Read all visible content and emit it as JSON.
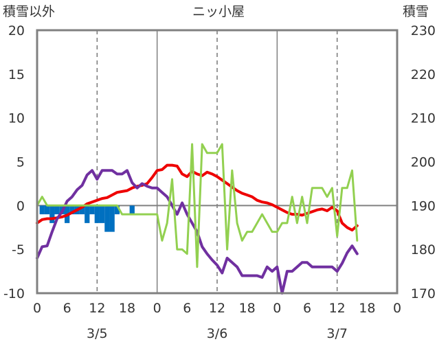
{
  "chart_data": {
    "type": "line",
    "title": "ニッ小屋",
    "left_axis_label": "積雪以外",
    "right_axis_label": "積雪",
    "left_ylim": [
      -10,
      20
    ],
    "right_ylim": [
      170,
      230
    ],
    "left_yticks": [
      "20",
      "15",
      "10",
      "5",
      "0",
      "-5",
      "-10"
    ],
    "right_yticks": [
      "230",
      "220",
      "210",
      "200",
      "190",
      "180",
      "170"
    ],
    "xlim": [
      0,
      72
    ],
    "x_ticks": [
      "0",
      "6",
      "12",
      "18",
      "0",
      "6",
      "12",
      "18",
      "0",
      "6",
      "12",
      "18",
      "0"
    ],
    "day_labels": [
      "3/5",
      "3/6",
      "3/7"
    ],
    "grid": "dashed vertical lines at hours 12, 36, 60; solid lines at day boundaries and at zero",
    "x_unit": "hours from 3/5 00:00",
    "series": [
      {
        "color": "#ee0000",
        "axis": "left",
        "values": [
          [
            0,
            -2
          ],
          [
            1,
            -1.6
          ],
          [
            2,
            -1.5
          ],
          [
            3,
            -1.5
          ],
          [
            4,
            -1.4
          ],
          [
            5,
            -1.3
          ],
          [
            6,
            -1.1
          ],
          [
            7,
            -0.8
          ],
          [
            8,
            -0.5
          ],
          [
            9,
            -0.2
          ],
          [
            10,
            0.2
          ],
          [
            11,
            0.4
          ],
          [
            12,
            0.6
          ],
          [
            13,
            0.8
          ],
          [
            14,
            0.9
          ],
          [
            15,
            1.2
          ],
          [
            16,
            1.5
          ],
          [
            17,
            1.6
          ],
          [
            18,
            1.7
          ],
          [
            19,
            2
          ],
          [
            20,
            2.2
          ],
          [
            21,
            2.3
          ],
          [
            22,
            2.5
          ],
          [
            23,
            3.2
          ],
          [
            24,
            4
          ],
          [
            25,
            4.1
          ],
          [
            26,
            4.6
          ],
          [
            27,
            4.6
          ],
          [
            28,
            4.5
          ],
          [
            29,
            3.6
          ],
          [
            30,
            3.3
          ],
          [
            31,
            3.9
          ],
          [
            32,
            3.6
          ],
          [
            33,
            3.4
          ],
          [
            34,
            3.8
          ],
          [
            35,
            3.6
          ],
          [
            36,
            3.3
          ],
          [
            37,
            2.9
          ],
          [
            38,
            2.5
          ],
          [
            39,
            2.1
          ],
          [
            40,
            1.7
          ],
          [
            41,
            1.4
          ],
          [
            42,
            1.2
          ],
          [
            43,
            1
          ],
          [
            44,
            0.6
          ],
          [
            45,
            0.4
          ],
          [
            46,
            0.3
          ],
          [
            47,
            0.1
          ],
          [
            48,
            -0.2
          ],
          [
            49,
            -0.5
          ],
          [
            50,
            -0.8
          ],
          [
            51,
            -1
          ],
          [
            52,
            -1
          ],
          [
            53,
            -1.1
          ],
          [
            54,
            -0.9
          ],
          [
            55,
            -0.7
          ],
          [
            56,
            -0.5
          ],
          [
            57,
            -0.4
          ],
          [
            58,
            -0.6
          ],
          [
            59,
            -0.2
          ],
          [
            60,
            -0.6
          ],
          [
            61,
            -2
          ],
          [
            62,
            -2.5
          ],
          [
            63,
            -2.8
          ],
          [
            64,
            -2.3
          ]
        ]
      },
      {
        "color": "#7030a0",
        "axis": "left",
        "values": [
          [
            0,
            -6
          ],
          [
            1,
            -4.7
          ],
          [
            2,
            -4.6
          ],
          [
            3,
            -3
          ],
          [
            4,
            -1.5
          ],
          [
            5,
            -0.7
          ],
          [
            6,
            0.5
          ],
          [
            7,
            1
          ],
          [
            8,
            1.8
          ],
          [
            9,
            2.3
          ],
          [
            10,
            3.5
          ],
          [
            11,
            4
          ],
          [
            12,
            3
          ],
          [
            13,
            4
          ],
          [
            14,
            4
          ],
          [
            15,
            4
          ],
          [
            16,
            3.6
          ],
          [
            17,
            3.6
          ],
          [
            18,
            4
          ],
          [
            19,
            2.6
          ],
          [
            20,
            2
          ],
          [
            21,
            2.5
          ],
          [
            22,
            2.2
          ],
          [
            23,
            2
          ],
          [
            24,
            2
          ],
          [
            25,
            1.5
          ],
          [
            26,
            1
          ],
          [
            27,
            0
          ],
          [
            28,
            -1
          ],
          [
            29,
            0.3
          ],
          [
            30,
            -1
          ],
          [
            31,
            -2
          ],
          [
            32,
            -3
          ],
          [
            33,
            -4.7
          ],
          [
            34,
            -5.5
          ],
          [
            35,
            -6.2
          ],
          [
            36,
            -6.8
          ],
          [
            37,
            -7.7
          ],
          [
            38,
            -6
          ],
          [
            39,
            -6.5
          ],
          [
            40,
            -7
          ],
          [
            41,
            -8
          ],
          [
            42,
            -8
          ],
          [
            43,
            -8
          ],
          [
            44,
            -8
          ],
          [
            45,
            -8.2
          ],
          [
            46,
            -7
          ],
          [
            47,
            -7.5
          ],
          [
            48,
            -7
          ],
          [
            49,
            -10
          ],
          [
            50,
            -7.5
          ],
          [
            51,
            -7.5
          ],
          [
            52,
            -7
          ],
          [
            53,
            -6.5
          ],
          [
            54,
            -6.5
          ],
          [
            55,
            -7
          ],
          [
            56,
            -7
          ],
          [
            57,
            -7
          ],
          [
            58,
            -7
          ],
          [
            59,
            -7
          ],
          [
            60,
            -7.5
          ],
          [
            61,
            -6.6
          ],
          [
            62,
            -5.4
          ],
          [
            63,
            -4.6
          ],
          [
            64,
            -5.5
          ]
        ]
      },
      {
        "color": "#92d050",
        "axis": "left",
        "values": [
          [
            0,
            0
          ],
          [
            1,
            1
          ],
          [
            2,
            0
          ],
          [
            3,
            0
          ],
          [
            4,
            0
          ],
          [
            5,
            0
          ],
          [
            6,
            0
          ],
          [
            7,
            0
          ],
          [
            8,
            0
          ],
          [
            9,
            0
          ],
          [
            10,
            0
          ],
          [
            11,
            0
          ],
          [
            12,
            0
          ],
          [
            13,
            0
          ],
          [
            14,
            0
          ],
          [
            15,
            0
          ],
          [
            16,
            0
          ],
          [
            17,
            -1
          ],
          [
            18,
            -1
          ],
          [
            19,
            -1
          ],
          [
            20,
            -1
          ],
          [
            21,
            -1
          ],
          [
            22,
            -1
          ],
          [
            23,
            -1
          ],
          [
            24,
            -1
          ],
          [
            25,
            -4
          ],
          [
            26,
            -2
          ],
          [
            27,
            3
          ],
          [
            28,
            -5
          ],
          [
            29,
            -5
          ],
          [
            30,
            -5.5
          ],
          [
            31,
            7
          ],
          [
            32,
            -7
          ],
          [
            33,
            7
          ],
          [
            34,
            6
          ],
          [
            35,
            6
          ],
          [
            36,
            6
          ],
          [
            37,
            7
          ],
          [
            38,
            -5
          ],
          [
            39,
            4
          ],
          [
            40,
            -2
          ],
          [
            41,
            -4
          ],
          [
            42,
            -3
          ],
          [
            43,
            -3
          ],
          [
            44,
            -2
          ],
          [
            45,
            -1
          ],
          [
            46,
            -2
          ],
          [
            47,
            -3
          ],
          [
            48,
            -3
          ],
          [
            49,
            -2
          ],
          [
            50,
            -2
          ],
          [
            51,
            1
          ],
          [
            52,
            -2
          ],
          [
            53,
            1
          ],
          [
            54,
            -2
          ],
          [
            55,
            2
          ],
          [
            56,
            2
          ],
          [
            57,
            2
          ],
          [
            58,
            1
          ],
          [
            59,
            2
          ],
          [
            60,
            -3.5
          ],
          [
            61,
            2
          ],
          [
            62,
            2
          ],
          [
            63,
            4
          ],
          [
            64,
            -4
          ]
        ]
      },
      {
        "color": "#0070c0",
        "axis": "left",
        "type": "bar",
        "values": [
          [
            1,
            -1
          ],
          [
            2,
            -1
          ],
          [
            3,
            -2
          ],
          [
            4,
            -1
          ],
          [
            5,
            -1
          ],
          [
            6,
            -2
          ],
          [
            7,
            -1
          ],
          [
            8,
            -1
          ],
          [
            9,
            -1
          ],
          [
            10,
            -2
          ],
          [
            11,
            -1
          ],
          [
            12,
            -2
          ],
          [
            13,
            -2
          ],
          [
            14,
            -3
          ],
          [
            15,
            -3
          ],
          [
            16,
            -1
          ],
          [
            19,
            -1
          ]
        ]
      }
    ]
  }
}
